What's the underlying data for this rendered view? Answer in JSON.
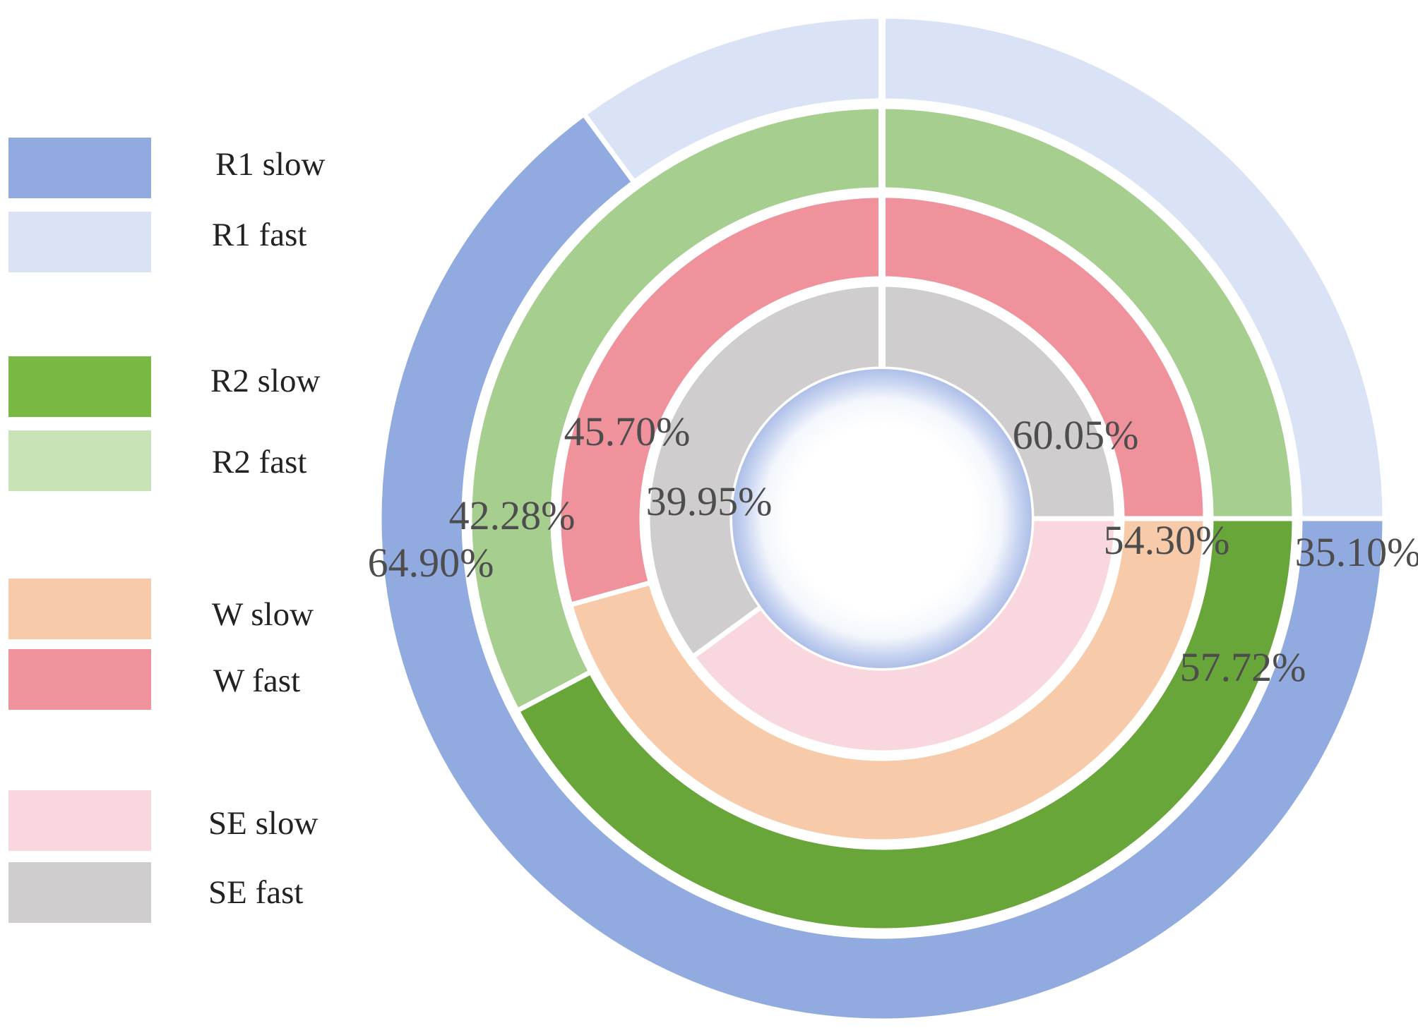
{
  "chart_data": {
    "type": "pie",
    "variant": "concentric-donut",
    "title": "",
    "legend": {
      "placement": "left",
      "entries": [
        {
          "label": "R1 slow",
          "color": "#91abe0"
        },
        {
          "label": "R1 fast",
          "color": "#dae3f5"
        },
        {
          "label": "R2 slow",
          "color": "#78b843"
        },
        {
          "label": "R2 fast",
          "color": "#c8e3b5"
        },
        {
          "label": "W slow",
          "color": "#f7cba9"
        },
        {
          "label": "W fast",
          "color": "#ef929b"
        },
        {
          "label": "SE slow",
          "color": "#f8d8de"
        },
        {
          "label": "SE fast",
          "color": "#cfcdce"
        }
      ]
    },
    "rings": [
      {
        "name": "R1",
        "slices": [
          {
            "category": "slow",
            "value": 64.9,
            "label": "64.90%",
            "color": "#91abe0"
          },
          {
            "category": "fast",
            "value": 35.1,
            "label": "35.10%",
            "color": "#dae3f5"
          }
        ]
      },
      {
        "name": "R2",
        "slices": [
          {
            "category": "slow",
            "value": 42.28,
            "label": "42.28%",
            "color": "#68a63a"
          },
          {
            "category": "fast",
            "value": 57.72,
            "label": "57.72%",
            "color": "#a6ce8f"
          }
        ]
      },
      {
        "name": "W",
        "slices": [
          {
            "category": "slow",
            "value": 45.7,
            "label": "45.70%",
            "color": "#f7cba9"
          },
          {
            "category": "fast",
            "value": 54.3,
            "label": "54.30%",
            "color": "#ef929b"
          }
        ]
      },
      {
        "name": "SE",
        "slices": [
          {
            "category": "slow",
            "value": 39.95,
            "label": "39.95%",
            "color": "#f8d8de"
          },
          {
            "category": "fast",
            "value": 60.05,
            "label": "60.05%",
            "color": "#cfcdce"
          }
        ]
      }
    ]
  }
}
